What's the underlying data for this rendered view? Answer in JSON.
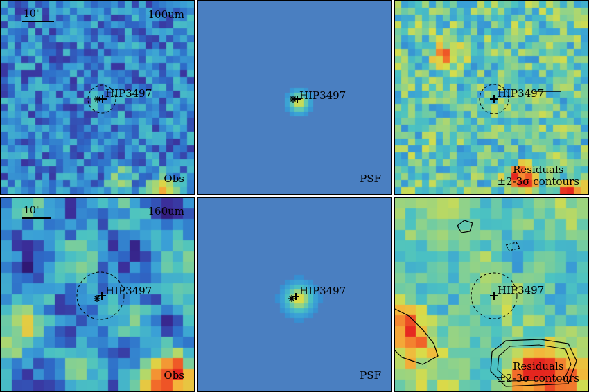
{
  "target_label": "HIP3497",
  "scale_bar_label": "10\"",
  "rows": [
    {
      "band_label": "100um",
      "panels": [
        {
          "kind": "obs",
          "label": "Obs"
        },
        {
          "kind": "psf",
          "label": "PSF"
        },
        {
          "kind": "residual",
          "label_line1": "Residuals",
          "label_line2": "±2-3σ contours"
        }
      ]
    },
    {
      "band_label": "160um",
      "panels": [
        {
          "kind": "obs",
          "label": "Obs"
        },
        {
          "kind": "psf",
          "label": "PSF"
        },
        {
          "kind": "residual",
          "label_line1": "Residuals",
          "label_line2": "±2-3σ contours"
        }
      ]
    }
  ],
  "colormap": [
    "#2a0a5e",
    "#3b2f9b",
    "#2e6bc8",
    "#3aa0d6",
    "#4cc3c1",
    "#8fd28a",
    "#d7dd4a",
    "#f4b43a",
    "#f26a2a",
    "#e5261f"
  ],
  "psf_background_color": "#4a7fc1"
}
